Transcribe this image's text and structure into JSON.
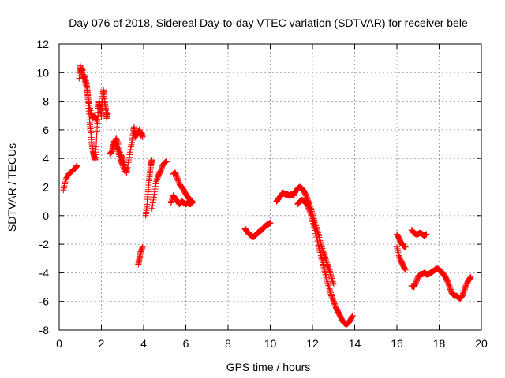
{
  "chart_data": {
    "type": "scatter",
    "title": "Day 076 of 2018, Sidereal Day-to-day VTEC variation (SDTVAR) for receiver bele",
    "xlabel": "GPS time / hours",
    "ylabel": "SDTVAR / TECUs",
    "xlim": [
      0,
      20
    ],
    "ylim": [
      -8,
      12
    ],
    "x_ticks": [
      0,
      2,
      4,
      6,
      8,
      10,
      12,
      14,
      16,
      18,
      20
    ],
    "y_ticks": [
      -8,
      -6,
      -4,
      -2,
      0,
      2,
      4,
      6,
      8,
      10,
      12
    ],
    "x_tick_labels": [
      "0",
      "2",
      "4",
      "6",
      "8",
      "10",
      "12",
      "14",
      "16",
      "18",
      "20"
    ],
    "y_tick_labels": [
      "-8",
      "-6",
      "-4",
      "-2",
      "0",
      "2",
      "4",
      "6",
      "8",
      "10",
      "12"
    ],
    "grid": true,
    "marker": "+",
    "marker_color": "#ff0000",
    "segments": [
      [
        [
          0.2,
          1.8
        ],
        [
          0.3,
          2.5
        ],
        [
          0.45,
          2.9
        ],
        [
          0.6,
          3.1
        ],
        [
          0.75,
          3.3
        ],
        [
          0.85,
          3.5
        ]
      ],
      [
        [
          0.95,
          9.6
        ],
        [
          1.0,
          10.5
        ],
        [
          1.05,
          10.0
        ],
        [
          1.1,
          10.3
        ],
        [
          1.15,
          9.6
        ],
        [
          1.2,
          9.8
        ],
        [
          1.3,
          9.2
        ],
        [
          1.35,
          8.5
        ],
        [
          1.4,
          7.5
        ],
        [
          1.45,
          6.5
        ],
        [
          1.5,
          5.8
        ],
        [
          1.55,
          5.0
        ],
        [
          1.6,
          4.5
        ],
        [
          1.65,
          4.2
        ],
        [
          1.7,
          3.9
        ],
        [
          1.75,
          4.8
        ],
        [
          1.8,
          6.2
        ],
        [
          1.85,
          7.5
        ],
        [
          1.9,
          8.0
        ],
        [
          1.95,
          7.4
        ],
        [
          2.0,
          6.9
        ],
        [
          2.05,
          8.2
        ],
        [
          2.1,
          8.8
        ],
        [
          2.15,
          8.0
        ],
        [
          2.2,
          7.5
        ],
        [
          2.25,
          6.8
        ],
        [
          2.3,
          7.2
        ]
      ],
      [
        [
          1.2,
          9.5
        ],
        [
          1.3,
          9.0
        ],
        [
          1.4,
          8.0
        ],
        [
          1.5,
          7.2
        ],
        [
          1.6,
          6.8
        ],
        [
          1.7,
          7.0
        ],
        [
          1.8,
          6.6
        ]
      ],
      [
        [
          2.4,
          4.3
        ],
        [
          2.5,
          4.5
        ],
        [
          2.6,
          5.0
        ],
        [
          2.7,
          5.4
        ],
        [
          2.8,
          5.0
        ],
        [
          2.9,
          4.3
        ],
        [
          3.0,
          4.0
        ],
        [
          3.1,
          3.5
        ],
        [
          3.2,
          3.0
        ],
        [
          3.3,
          3.9
        ],
        [
          3.4,
          4.8
        ],
        [
          3.5,
          5.6
        ],
        [
          3.55,
          6.2
        ],
        [
          3.6,
          5.5
        ],
        [
          3.7,
          5.8
        ],
        [
          3.8,
          6.0
        ],
        [
          3.85,
          5.6
        ],
        [
          3.9,
          5.8
        ],
        [
          3.95,
          5.5
        ]
      ],
      [
        [
          2.5,
          4.6
        ],
        [
          2.6,
          5.2
        ],
        [
          2.7,
          4.9
        ],
        [
          2.8,
          4.5
        ],
        [
          2.9,
          3.9
        ],
        [
          3.0,
          3.6
        ],
        [
          3.1,
          3.1
        ]
      ],
      [
        [
          3.75,
          -3.4
        ],
        [
          3.8,
          -3.0
        ],
        [
          3.85,
          -2.6
        ],
        [
          3.95,
          -2.2
        ]
      ],
      [
        [
          4.1,
          0.0
        ],
        [
          4.15,
          0.6
        ],
        [
          4.2,
          1.5
        ],
        [
          4.25,
          2.3
        ],
        [
          4.3,
          3.0
        ],
        [
          4.35,
          3.6
        ],
        [
          4.4,
          3.9
        ]
      ],
      [
        [
          4.4,
          0.5
        ],
        [
          4.5,
          1.5
        ],
        [
          4.6,
          2.4
        ],
        [
          4.7,
          2.8
        ],
        [
          4.8,
          3.1
        ],
        [
          4.9,
          3.5
        ],
        [
          5.0,
          3.7
        ],
        [
          5.1,
          3.8
        ]
      ],
      [
        [
          5.3,
          0.9
        ],
        [
          5.4,
          1.4
        ],
        [
          5.5,
          1.2
        ],
        [
          5.6,
          1.0
        ],
        [
          5.7,
          0.8
        ],
        [
          5.8,
          1.0
        ],
        [
          5.9,
          0.9
        ],
        [
          6.0,
          0.8
        ],
        [
          6.1,
          0.9
        ],
        [
          6.2,
          0.8
        ],
        [
          6.3,
          0.9
        ]
      ],
      [
        [
          5.4,
          2.9
        ],
        [
          5.5,
          3.0
        ],
        [
          5.6,
          2.6
        ],
        [
          5.7,
          2.2
        ],
        [
          5.8,
          2.0
        ],
        [
          5.9,
          1.8
        ],
        [
          6.0,
          1.5
        ],
        [
          6.1,
          1.3
        ],
        [
          6.2,
          1.1
        ],
        [
          6.3,
          1.0
        ]
      ],
      [
        [
          8.8,
          -0.9
        ],
        [
          8.9,
          -1.1
        ],
        [
          9.0,
          -1.3
        ],
        [
          9.1,
          -1.4
        ],
        [
          9.2,
          -1.5
        ],
        [
          9.3,
          -1.4
        ],
        [
          9.4,
          -1.2
        ],
        [
          9.5,
          -1.1
        ],
        [
          9.6,
          -1.0
        ],
        [
          9.7,
          -0.8
        ],
        [
          9.8,
          -0.7
        ],
        [
          9.9,
          -0.6
        ],
        [
          10.0,
          -0.5
        ]
      ],
      [
        [
          10.3,
          1.0
        ],
        [
          10.4,
          1.2
        ],
        [
          10.5,
          1.4
        ],
        [
          10.6,
          1.6
        ],
        [
          10.7,
          1.5
        ],
        [
          10.8,
          1.5
        ],
        [
          10.9,
          1.4
        ],
        [
          11.0,
          1.5
        ],
        [
          11.1,
          1.4
        ],
        [
          11.2,
          1.7
        ],
        [
          11.3,
          1.9
        ],
        [
          11.4,
          2.0
        ],
        [
          11.5,
          1.9
        ],
        [
          11.6,
          1.7
        ],
        [
          11.7,
          1.4
        ],
        [
          11.8,
          1.0
        ],
        [
          11.9,
          0.6
        ],
        [
          12.0,
          0.1
        ],
        [
          12.1,
          -0.4
        ],
        [
          12.2,
          -0.9
        ],
        [
          12.3,
          -1.4
        ],
        [
          12.4,
          -2.0
        ],
        [
          12.5,
          -2.5
        ],
        [
          12.6,
          -2.9
        ],
        [
          12.7,
          -3.4
        ],
        [
          12.8,
          -3.8
        ],
        [
          12.9,
          -4.3
        ],
        [
          13.0,
          -4.8
        ]
      ],
      [
        [
          11.3,
          0.8
        ],
        [
          11.4,
          1.0
        ],
        [
          11.5,
          1.1
        ],
        [
          11.6,
          1.0
        ],
        [
          11.7,
          0.9
        ],
        [
          11.8,
          0.6
        ],
        [
          11.9,
          0.2
        ],
        [
          12.0,
          -0.3
        ],
        [
          12.1,
          -0.9
        ],
        [
          12.2,
          -1.5
        ],
        [
          12.3,
          -2.2
        ],
        [
          12.4,
          -2.8
        ],
        [
          12.5,
          -3.4
        ],
        [
          12.6,
          -4.0
        ],
        [
          12.7,
          -4.6
        ],
        [
          12.8,
          -5.1
        ],
        [
          12.9,
          -5.6
        ],
        [
          13.0,
          -6.0
        ],
        [
          13.1,
          -6.4
        ],
        [
          13.2,
          -6.7
        ],
        [
          13.3,
          -7.0
        ],
        [
          13.4,
          -7.3
        ],
        [
          13.5,
          -7.5
        ],
        [
          13.6,
          -7.6
        ],
        [
          13.7,
          -7.5
        ],
        [
          13.8,
          -7.3
        ],
        [
          13.9,
          -7.0
        ]
      ],
      [
        [
          16.0,
          -2.2
        ],
        [
          16.1,
          -2.8
        ],
        [
          16.2,
          -3.2
        ],
        [
          16.3,
          -3.5
        ],
        [
          16.4,
          -3.8
        ]
      ],
      [
        [
          16.0,
          -1.3
        ],
        [
          16.1,
          -1.6
        ],
        [
          16.2,
          -1.9
        ],
        [
          16.3,
          -2.1
        ],
        [
          16.4,
          -2.2
        ]
      ],
      [
        [
          16.7,
          -1.0
        ],
        [
          16.8,
          -1.2
        ],
        [
          16.9,
          -1.3
        ],
        [
          17.0,
          -1.3
        ],
        [
          17.1,
          -1.2
        ],
        [
          17.2,
          -1.3
        ],
        [
          17.3,
          -1.4
        ],
        [
          17.4,
          -1.3
        ]
      ],
      [
        [
          16.7,
          -4.9
        ],
        [
          16.8,
          -5.0
        ],
        [
          16.9,
          -4.7
        ],
        [
          17.0,
          -4.3
        ],
        [
          17.1,
          -4.1
        ],
        [
          17.2,
          -4.1
        ],
        [
          17.3,
          -4.0
        ],
        [
          17.4,
          -4.1
        ],
        [
          17.5,
          -4.1
        ],
        [
          17.6,
          -4.0
        ],
        [
          17.7,
          -3.9
        ],
        [
          17.8,
          -3.8
        ],
        [
          17.9,
          -3.7
        ],
        [
          18.0,
          -3.8
        ],
        [
          18.1,
          -3.9
        ],
        [
          18.2,
          -4.1
        ],
        [
          18.3,
          -4.3
        ],
        [
          18.4,
          -4.6
        ],
        [
          18.5,
          -5.0
        ],
        [
          18.6,
          -5.4
        ],
        [
          18.7,
          -5.6
        ],
        [
          18.8,
          -5.6
        ],
        [
          18.9,
          -5.7
        ],
        [
          19.0,
          -5.8
        ],
        [
          19.1,
          -5.6
        ],
        [
          19.2,
          -5.2
        ],
        [
          19.3,
          -4.8
        ],
        [
          19.4,
          -4.5
        ],
        [
          19.5,
          -4.3
        ]
      ]
    ]
  }
}
